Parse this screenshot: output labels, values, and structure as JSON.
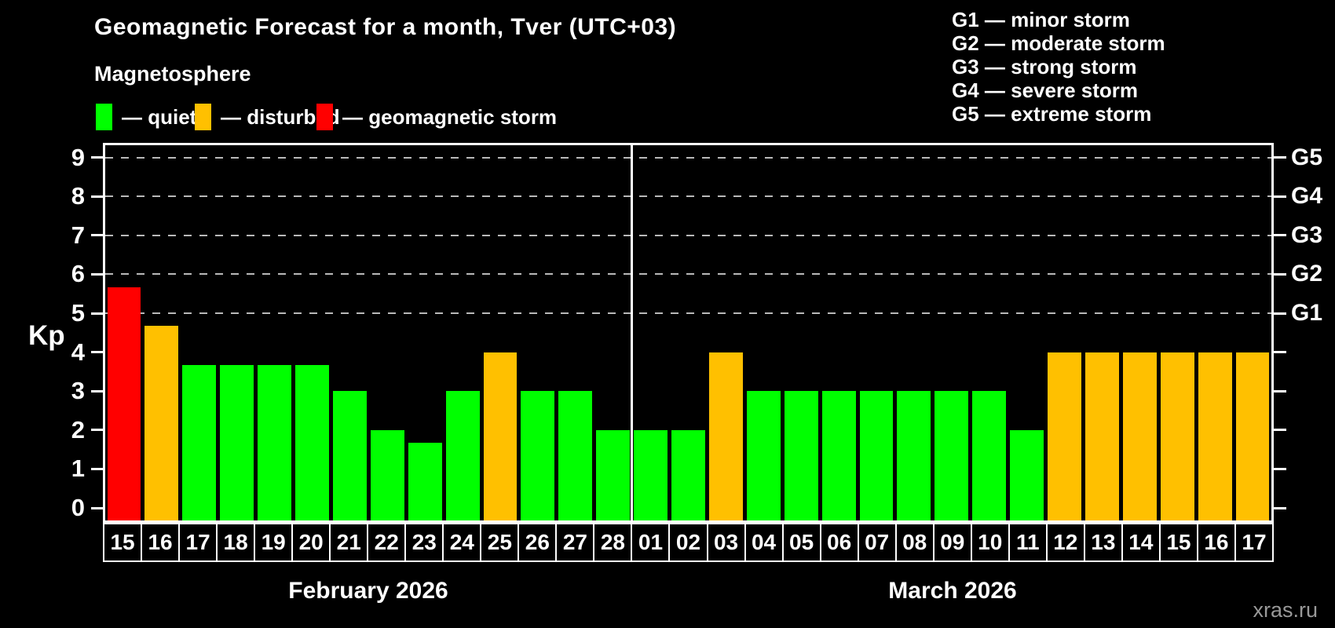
{
  "title": "Geomagnetic Forecast for a month, Tver (UTC+03)",
  "subtitle": "Magnetosphere",
  "watermark": "xras.ru",
  "colors": {
    "quiet": "#00ff00",
    "disturbed": "#ffc000",
    "storm": "#ff0000",
    "grid": "#b9b9b9",
    "axis": "#ffffff",
    "background": "#000000",
    "watermark": "#999999"
  },
  "condition_legend": [
    {
      "key": "quiet",
      "label": "— quiet",
      "color": "#00ff00"
    },
    {
      "key": "disturbed",
      "label": "— disturbed",
      "color": "#ffc000"
    },
    {
      "key": "storm",
      "label": "— geomagnetic storm",
      "color": "#ff0000"
    }
  ],
  "storm_scale_legend": [
    "G1 — minor storm",
    "G2 — moderate storm",
    "G3 — strong storm",
    "G4 — severe storm",
    "G5 — extreme storm"
  ],
  "y_axis": {
    "label": "Kp",
    "ticks": [
      0,
      1,
      2,
      3,
      4,
      5,
      6,
      7,
      8,
      9
    ]
  },
  "right_axis": {
    "ticks": [
      0,
      1,
      2,
      3,
      4,
      5,
      6,
      7,
      8,
      9
    ],
    "labels": [
      {
        "kp": 5,
        "text": "G1"
      },
      {
        "kp": 6,
        "text": "G2"
      },
      {
        "kp": 7,
        "text": "G3"
      },
      {
        "kp": 8,
        "text": "G4"
      },
      {
        "kp": 9,
        "text": "G5"
      }
    ]
  },
  "months": [
    {
      "label": "February 2026",
      "start_index": 0,
      "day_count": 14
    },
    {
      "label": "March 2026",
      "start_index": 14,
      "day_count": 17
    }
  ],
  "chart_data": {
    "type": "bar",
    "title": "Geomagnetic Forecast for a month, Tver (UTC+03)",
    "xlabel": "",
    "ylabel": "Kp",
    "ylim": [
      0,
      9
    ],
    "grid": "dashed horizontal at Kp 5-9 (G1-G5)",
    "gridlines_kp": [
      5,
      6,
      7,
      8,
      9
    ],
    "legend_position": "top",
    "bars": [
      {
        "day": "15",
        "month": "February 2026",
        "value": 5.67,
        "condition": "storm"
      },
      {
        "day": "16",
        "month": "February 2026",
        "value": 4.67,
        "condition": "disturbed"
      },
      {
        "day": "17",
        "month": "February 2026",
        "value": 3.67,
        "condition": "quiet"
      },
      {
        "day": "18",
        "month": "February 2026",
        "value": 3.67,
        "condition": "quiet"
      },
      {
        "day": "19",
        "month": "February 2026",
        "value": 3.67,
        "condition": "quiet"
      },
      {
        "day": "20",
        "month": "February 2026",
        "value": 3.67,
        "condition": "quiet"
      },
      {
        "day": "21",
        "month": "February 2026",
        "value": 3,
        "condition": "quiet"
      },
      {
        "day": "22",
        "month": "February 2026",
        "value": 2,
        "condition": "quiet"
      },
      {
        "day": "23",
        "month": "February 2026",
        "value": 1.67,
        "condition": "quiet"
      },
      {
        "day": "24",
        "month": "February 2026",
        "value": 3,
        "condition": "quiet"
      },
      {
        "day": "25",
        "month": "February 2026",
        "value": 4,
        "condition": "disturbed"
      },
      {
        "day": "26",
        "month": "February 2026",
        "value": 3,
        "condition": "quiet"
      },
      {
        "day": "27",
        "month": "February 2026",
        "value": 3,
        "condition": "quiet"
      },
      {
        "day": "28",
        "month": "February 2026",
        "value": 2,
        "condition": "quiet"
      },
      {
        "day": "01",
        "month": "March 2026",
        "value": 2,
        "condition": "quiet"
      },
      {
        "day": "02",
        "month": "March 2026",
        "value": 2,
        "condition": "quiet"
      },
      {
        "day": "03",
        "month": "March 2026",
        "value": 4,
        "condition": "disturbed"
      },
      {
        "day": "04",
        "month": "March 2026",
        "value": 3,
        "condition": "quiet"
      },
      {
        "day": "05",
        "month": "March 2026",
        "value": 3,
        "condition": "quiet"
      },
      {
        "day": "06",
        "month": "March 2026",
        "value": 3,
        "condition": "quiet"
      },
      {
        "day": "07",
        "month": "March 2026",
        "value": 3,
        "condition": "quiet"
      },
      {
        "day": "08",
        "month": "March 2026",
        "value": 3,
        "condition": "quiet"
      },
      {
        "day": "09",
        "month": "March 2026",
        "value": 3,
        "condition": "quiet"
      },
      {
        "day": "10",
        "month": "March 2026",
        "value": 3,
        "condition": "quiet"
      },
      {
        "day": "11",
        "month": "March 2026",
        "value": 2,
        "condition": "quiet"
      },
      {
        "day": "12",
        "month": "March 2026",
        "value": 4,
        "condition": "disturbed"
      },
      {
        "day": "13",
        "month": "March 2026",
        "value": 4,
        "condition": "disturbed"
      },
      {
        "day": "14",
        "month": "March 2026",
        "value": 4,
        "condition": "disturbed"
      },
      {
        "day": "15",
        "month": "March 2026",
        "value": 4,
        "condition": "disturbed"
      },
      {
        "day": "16",
        "month": "March 2026",
        "value": 4,
        "condition": "disturbed"
      },
      {
        "day": "17",
        "month": "March 2026",
        "value": 4,
        "condition": "disturbed"
      }
    ]
  }
}
